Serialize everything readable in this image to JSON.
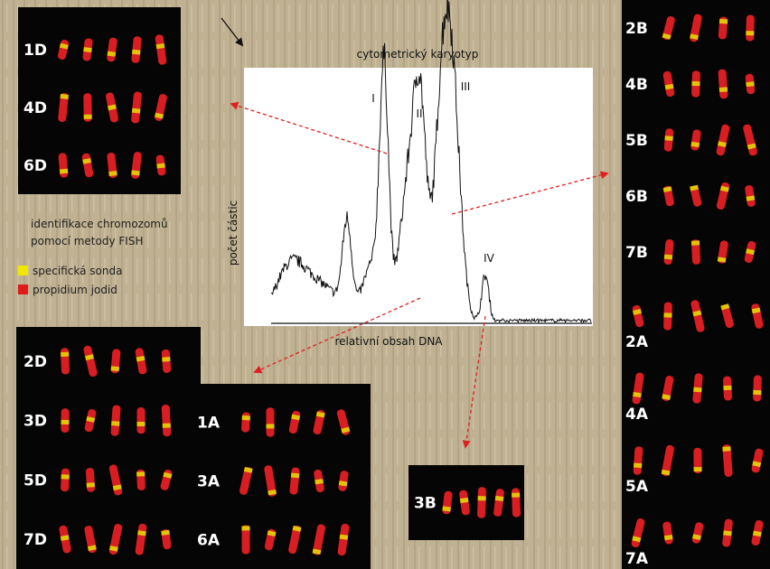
{
  "chart": {
    "title": "cytometrický karyotyp",
    "y_label": "počet částic",
    "x_label": "relativní  obsah DNA",
    "peaks": [
      "I",
      "II",
      "III",
      "IV"
    ]
  },
  "legend": {
    "title": [
      "identifikace chromozomů",
      "pomocí metody FISH"
    ],
    "items": [
      "specifická sonda",
      "propidium jodid"
    ]
  },
  "panels": [
    {
      "labels": [
        "1D",
        "4D",
        "6D"
      ]
    },
    {
      "labels": [
        "2D",
        "3D",
        "5D",
        "7D"
      ]
    },
    {
      "labels": [
        "1A",
        "3A",
        "6A"
      ]
    },
    {
      "labels": [
        "3B"
      ]
    },
    {
      "labels": [
        "2B",
        "4B",
        "5B",
        "6B",
        "7B"
      ]
    },
    {
      "labels": [
        "2A",
        "4A",
        "5A",
        "7A"
      ]
    }
  ]
}
